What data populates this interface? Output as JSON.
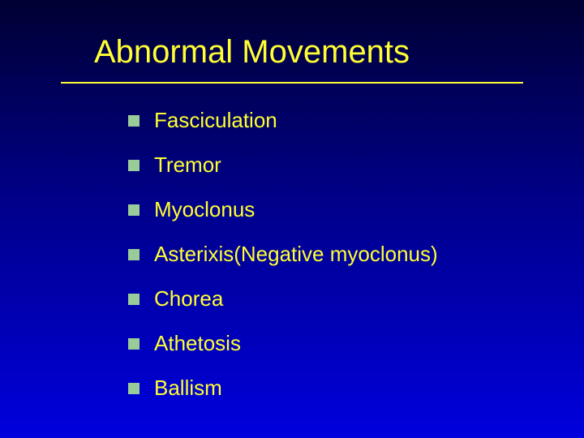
{
  "slide": {
    "title": "Abnormal Movements",
    "title_color": "#ffff33",
    "title_fontsize": 40,
    "underline_color": "#ffff33",
    "bullet_marker_color": "#99cc99",
    "bullet_text_color": "#ffff33",
    "bullet_fontsize": 26,
    "background_gradient": [
      "#000033",
      "#000088",
      "#0000dd"
    ],
    "items": [
      {
        "label": "Fasciculation"
      },
      {
        "label": "Tremor"
      },
      {
        "label": "Myoclonus"
      },
      {
        "label": "Asterixis(Negative myoclonus)"
      },
      {
        "label": "Chorea"
      },
      {
        "label": "Athetosis"
      },
      {
        "label": "Ballism"
      }
    ]
  }
}
